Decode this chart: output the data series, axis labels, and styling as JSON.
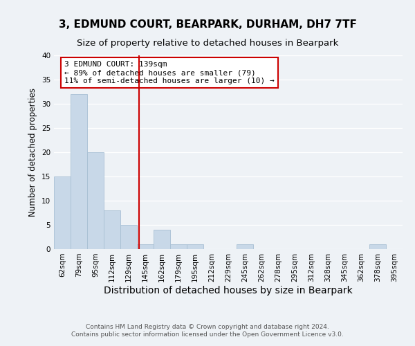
{
  "title": "3, EDMUND COURT, BEARPARK, DURHAM, DH7 7TF",
  "subtitle": "Size of property relative to detached houses in Bearpark",
  "xlabel": "Distribution of detached houses by size in Bearpark",
  "ylabel": "Number of detached properties",
  "bar_labels": [
    "62sqm",
    "79sqm",
    "95sqm",
    "112sqm",
    "129sqm",
    "145sqm",
    "162sqm",
    "179sqm",
    "195sqm",
    "212sqm",
    "229sqm",
    "245sqm",
    "262sqm",
    "278sqm",
    "295sqm",
    "312sqm",
    "328sqm",
    "345sqm",
    "362sqm",
    "378sqm",
    "395sqm"
  ],
  "bar_values": [
    15,
    32,
    20,
    8,
    5,
    1,
    4,
    1,
    1,
    0,
    0,
    1,
    0,
    0,
    0,
    0,
    0,
    0,
    0,
    1,
    0
  ],
  "bar_color": "#c8d8e8",
  "bar_edge_color": "#a8c0d4",
  "ylim": [
    0,
    40
  ],
  "yticks": [
    0,
    5,
    10,
    15,
    20,
    25,
    30,
    35,
    40
  ],
  "annotation_title": "3 EDMUND COURT: 139sqm",
  "annotation_line1": "← 89% of detached houses are smaller (79)",
  "annotation_line2": "11% of semi-detached houses are larger (10) →",
  "annotation_box_color": "#ffffff",
  "annotation_box_edge": "#cc0000",
  "vline_color": "#cc0000",
  "footer_line1": "Contains HM Land Registry data © Crown copyright and database right 2024.",
  "footer_line2": "Contains public sector information licensed under the Open Government Licence v3.0.",
  "title_fontsize": 11,
  "subtitle_fontsize": 9.5,
  "xlabel_fontsize": 10,
  "ylabel_fontsize": 8.5,
  "tick_fontsize": 7.5,
  "annotation_fontsize": 8,
  "footer_fontsize": 6.5,
  "background_color": "#eef2f6",
  "plot_bg_color": "#eef2f6"
}
